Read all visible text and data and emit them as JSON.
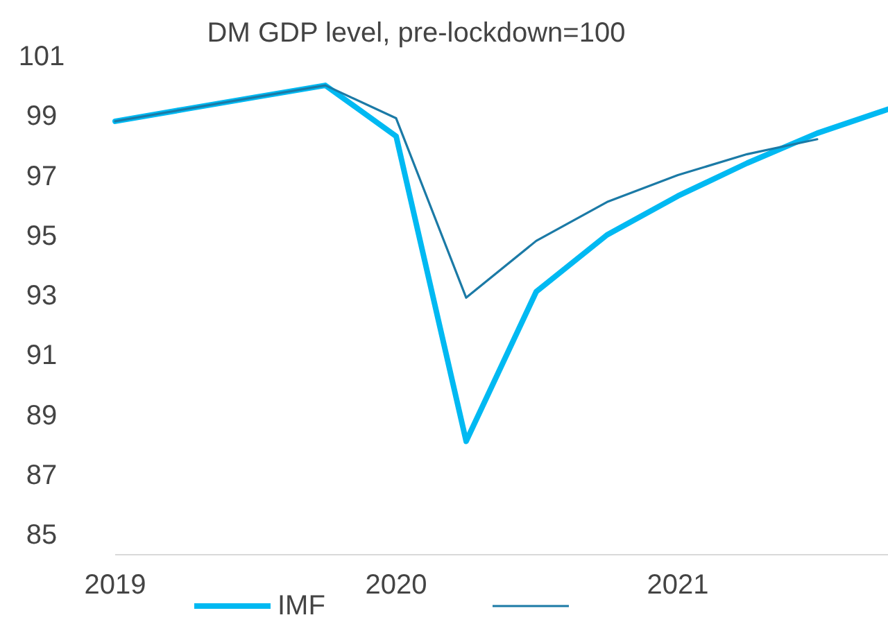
{
  "chart_data": {
    "type": "line",
    "title": "DM GDP level, pre-lockdown=100",
    "x": [
      "2019-01",
      "2019-04",
      "2019-07",
      "2019-10",
      "2020-01",
      "2020-04",
      "2020-07",
      "2020-10",
      "2021-01",
      "2021-04",
      "2021-07",
      "2021-10"
    ],
    "series": [
      {
        "name": "IMF",
        "color": "#00b9f2",
        "values": [
          98.8,
          99.2,
          99.6,
          100.0,
          98.3,
          88.1,
          93.1,
          95.0,
          96.3,
          97.4,
          98.4,
          99.2
        ]
      },
      {
        "color": "#1b7aa6",
        "values": [
          98.8,
          99.2,
          99.6,
          100.0,
          98.9,
          92.9,
          94.8,
          96.1,
          97.0,
          97.7,
          98.2,
          null
        ]
      }
    ],
    "xlim": [
      "2019-01",
      "2021-10"
    ],
    "xticks": [
      "2019",
      "2020",
      "2021"
    ],
    "ylim": [
      85,
      101
    ],
    "yticks": [
      85,
      87,
      89,
      91,
      93,
      95,
      97,
      99,
      101
    ],
    "grid": false,
    "legend": "bottom",
    "marker": "none",
    "line_style": "solid"
  }
}
